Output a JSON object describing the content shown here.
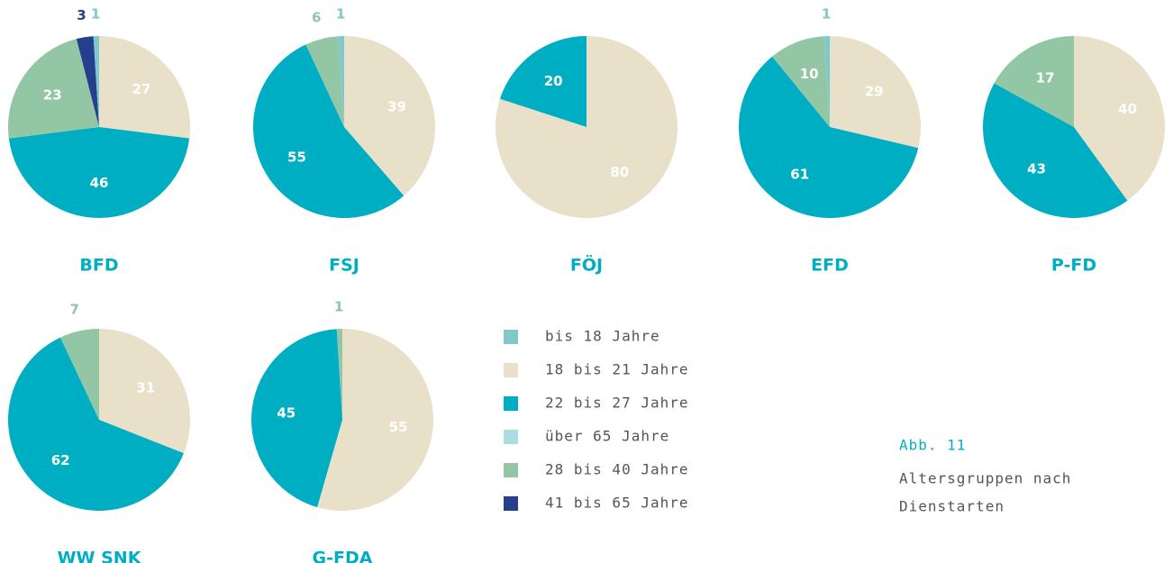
{
  "legend": [
    {
      "name": "bis 18 Jahre",
      "color": "#7fc9cd"
    },
    {
      "name": "18 bis 21 Jahre",
      "color": "#e8e0c9"
    },
    {
      "name": "22 bis 27 Jahre",
      "color": "#00aec3"
    },
    {
      "name": "über 65 Jahre",
      "color": "#aadde0"
    },
    {
      "name": "28 bis 40 Jahre",
      "color": "#93c6a4"
    },
    {
      "name": "41 bis 65 Jahre",
      "color": "#253f8e"
    }
  ],
  "caption": {
    "label": "Abb. 11",
    "lines": [
      "Altersgruppen nach",
      "Dienstarten"
    ]
  },
  "chart_data": [
    {
      "type": "pie",
      "title": "BFD",
      "values": [
        1,
        27,
        46,
        null,
        23,
        3
      ]
    },
    {
      "type": "pie",
      "title": "FSJ",
      "values": [
        1,
        39,
        55,
        null,
        6,
        null
      ]
    },
    {
      "type": "pie",
      "title": "FÖJ",
      "values": [
        null,
        80,
        20,
        null,
        null,
        null
      ]
    },
    {
      "type": "pie",
      "title": "EFD",
      "values": [
        1,
        29,
        61,
        null,
        10,
        null
      ]
    },
    {
      "type": "pie",
      "title": "P-FD",
      "values": [
        null,
        40,
        43,
        null,
        17,
        null
      ]
    },
    {
      "type": "pie",
      "title": "WW SNK",
      "values": [
        null,
        31,
        62,
        null,
        7,
        null
      ]
    },
    {
      "type": "pie",
      "title": "G-FDA",
      "values": [
        null,
        55,
        45,
        null,
        1,
        null
      ]
    }
  ]
}
